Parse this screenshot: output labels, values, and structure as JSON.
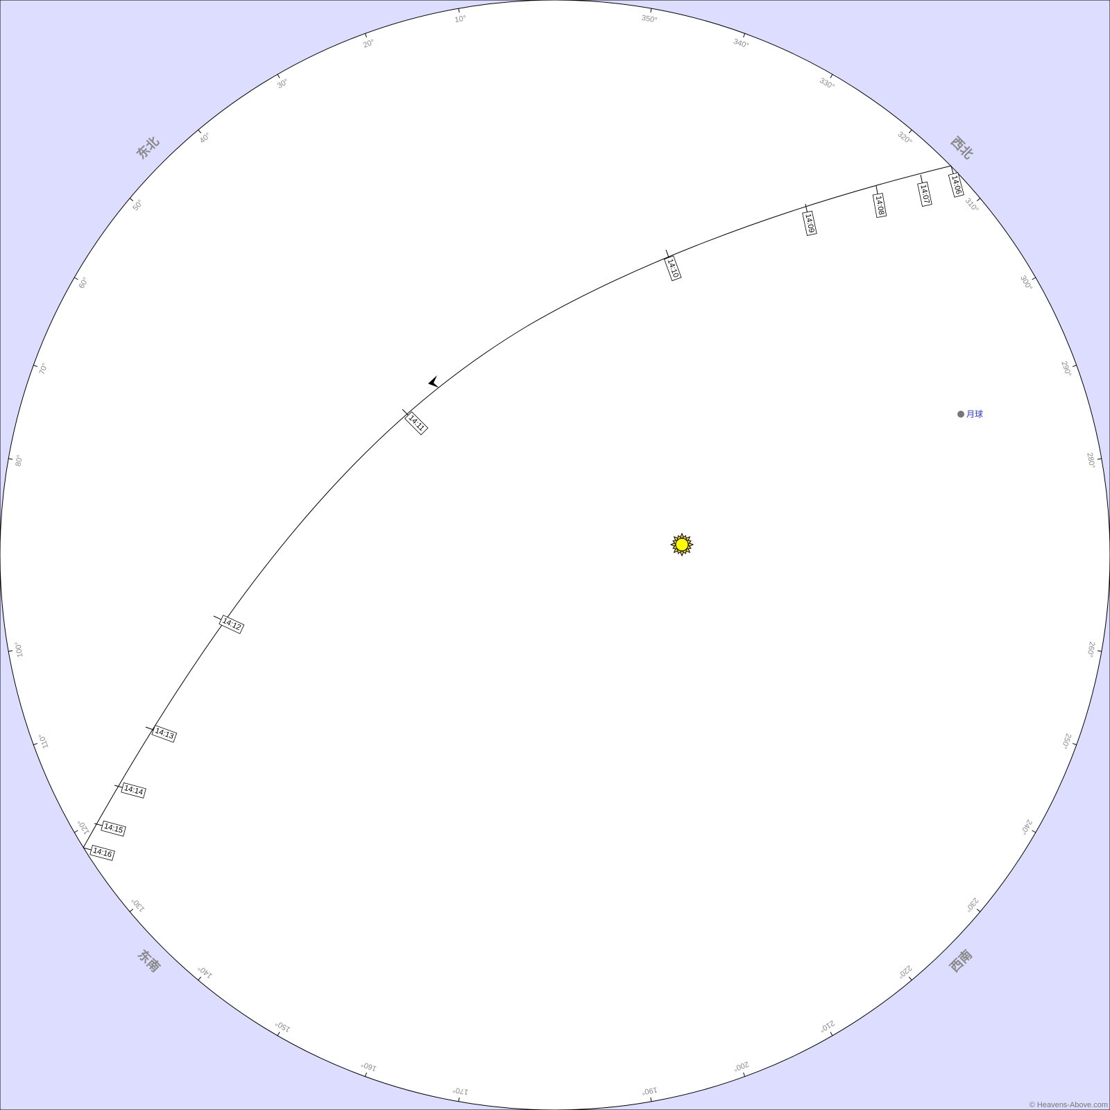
{
  "colors": {
    "background": "#ddddff",
    "sky": "#ffffff",
    "outline": "#000000",
    "label_gray": "#888888",
    "moon": "#777777",
    "moon_label": "#3333cc",
    "sun_fill": "#ffff00",
    "sun_ray": "#e8d44d"
  },
  "degree_labels": [
    "10°",
    "20°",
    "30°",
    "40°",
    "50°",
    "60°",
    "70°",
    "80°",
    "100°",
    "110°",
    "120°",
    "130°",
    "140°",
    "150°",
    "160°",
    "170°",
    "190°",
    "200°",
    "210°",
    "220°",
    "230°",
    "240°",
    "250°",
    "260°",
    "280°",
    "290°",
    "300°",
    "310°",
    "320°",
    "330°",
    "340°",
    "350°"
  ],
  "directions": {
    "northeast": "东北",
    "southeast": "东南",
    "southwest": "西南",
    "northwest": "西北"
  },
  "pass": {
    "direction_marker": "arrow",
    "time_labels": [
      "14:06",
      "14:07",
      "14:08",
      "14:09",
      "14:10",
      "14:11",
      "14:12",
      "14:13",
      "14:14",
      "14:15",
      "14:16"
    ]
  },
  "moon": {
    "label": "月球",
    "icon": "moon-dot-icon"
  },
  "sun": {
    "icon": "sun-icon"
  },
  "copyright": "© Heavens-Above.com"
}
